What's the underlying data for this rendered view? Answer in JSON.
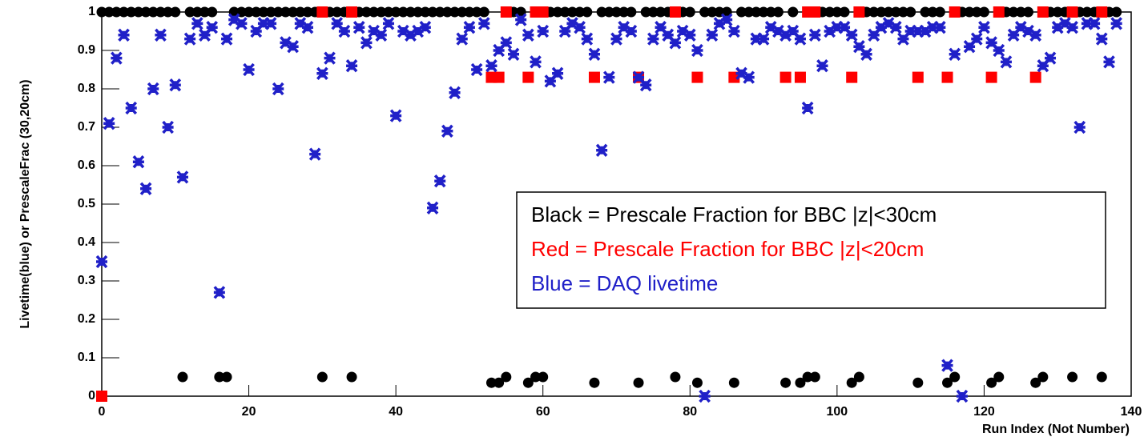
{
  "chart_data": {
    "type": "scatter",
    "xlabel": "Run Index (Not Number)",
    "ylabel": "Livetime(blue) or PrescaleFrac (30,20cm)",
    "xlim": [
      0,
      140
    ],
    "xticks": [
      0,
      20,
      40,
      60,
      80,
      100,
      120,
      140
    ],
    "ylim": [
      0,
      1
    ],
    "yticks": [
      0,
      0.1,
      0.2,
      0.3,
      0.4,
      0.5,
      0.6,
      0.7,
      0.8,
      0.9,
      1
    ],
    "series": [
      {
        "name": "Black = Prescale Fraction for BBC |z|<30cm",
        "color": "#000000",
        "marker": "circle",
        "x": [
          0,
          1,
          2,
          3,
          4,
          5,
          6,
          7,
          8,
          9,
          10,
          11,
          12,
          13,
          14,
          15,
          16,
          17,
          18,
          19,
          20,
          21,
          22,
          23,
          24,
          25,
          26,
          27,
          28,
          29,
          30,
          31,
          32,
          33,
          34,
          35,
          36,
          37,
          38,
          39,
          40,
          41,
          42,
          43,
          44,
          45,
          46,
          47,
          48,
          49,
          50,
          51,
          52,
          53,
          54,
          55,
          56,
          57,
          58,
          59,
          60,
          61,
          62,
          63,
          64,
          65,
          66,
          67,
          68,
          69,
          70,
          71,
          72,
          73,
          74,
          75,
          76,
          77,
          78,
          79,
          80,
          81,
          82,
          83,
          84,
          85,
          86,
          87,
          88,
          89,
          90,
          91,
          92,
          93,
          94,
          95,
          96,
          97,
          98,
          99,
          100,
          101,
          102,
          103,
          104,
          105,
          106,
          107,
          108,
          109,
          110,
          111,
          112,
          113,
          114,
          115,
          116,
          117,
          118,
          119,
          120,
          121,
          122,
          123,
          124,
          125,
          126,
          127,
          128,
          129,
          130,
          131,
          132,
          133,
          134,
          135,
          136,
          137,
          138
        ],
        "values": [
          1,
          1,
          1,
          1,
          1,
          1,
          1,
          1,
          1,
          1,
          1,
          0.05,
          1,
          1,
          1,
          1,
          0.05,
          0.05,
          1,
          1,
          1,
          1,
          1,
          1,
          1,
          1,
          1,
          1,
          1,
          1,
          0.05,
          1,
          1,
          1,
          0.05,
          1,
          1,
          1,
          1,
          1,
          1,
          1,
          1,
          1,
          1,
          1,
          1,
          1,
          1,
          1,
          1,
          1,
          1,
          0.035,
          0.035,
          0.05,
          1,
          1,
          0.035,
          0.05,
          0.05,
          1,
          1,
          1,
          1,
          1,
          1,
          0.035,
          1,
          1,
          1,
          1,
          1,
          0.035,
          1,
          1,
          1,
          1,
          0.05,
          1,
          1,
          0.035,
          1,
          1,
          1,
          1,
          0.035,
          1,
          1,
          1,
          1,
          1,
          1,
          0.035,
          1,
          0.035,
          0.05,
          0.05,
          1,
          1,
          1,
          1,
          0.035,
          0.05,
          1,
          1,
          1,
          1,
          1,
          1,
          1,
          0.035,
          1,
          1,
          1,
          0.035,
          0.05,
          1,
          1,
          1,
          1,
          0.035,
          0.05,
          1,
          1,
          1,
          1,
          0.035,
          0.05,
          1,
          1,
          1,
          0.05,
          1,
          1,
          1,
          0.05,
          1,
          1
        ]
      },
      {
        "name": "Red = Prescale Fraction for BBC |z|<20cm",
        "color": "#ff0000",
        "marker": "square",
        "x": [
          0,
          30,
          34,
          53,
          54,
          55,
          58,
          59,
          60,
          67,
          73,
          78,
          81,
          86,
          93,
          95,
          96,
          97,
          102,
          103,
          111,
          115,
          116,
          121,
          122,
          127,
          128,
          132,
          136
        ],
        "values": [
          0,
          1,
          1,
          0.83,
          0.83,
          1,
          0.83,
          1,
          1,
          0.83,
          0.83,
          1,
          0.83,
          0.83,
          0.83,
          0.83,
          1,
          1,
          0.83,
          1,
          0.83,
          0.83,
          1,
          0.83,
          1,
          0.83,
          1,
          1,
          1
        ]
      },
      {
        "name": "Blue = DAQ livetime",
        "color": "#2020c8",
        "marker": "star",
        "x": [
          0,
          1,
          2,
          3,
          4,
          5,
          6,
          7,
          8,
          9,
          10,
          11,
          12,
          13,
          14,
          15,
          16,
          17,
          18,
          19,
          20,
          21,
          22,
          23,
          24,
          25,
          26,
          27,
          28,
          29,
          30,
          31,
          32,
          33,
          34,
          35,
          36,
          37,
          38,
          39,
          40,
          41,
          42,
          43,
          44,
          45,
          46,
          47,
          48,
          49,
          50,
          51,
          52,
          53,
          54,
          55,
          56,
          57,
          58,
          59,
          60,
          61,
          62,
          63,
          64,
          65,
          66,
          67,
          68,
          69,
          70,
          71,
          72,
          73,
          74,
          75,
          76,
          77,
          78,
          79,
          80,
          81,
          82,
          83,
          84,
          85,
          86,
          87,
          88,
          89,
          90,
          91,
          92,
          93,
          94,
          95,
          96,
          97,
          98,
          99,
          100,
          101,
          102,
          103,
          104,
          105,
          106,
          107,
          108,
          109,
          110,
          111,
          112,
          113,
          114,
          115,
          116,
          117,
          118,
          119,
          120,
          121,
          122,
          123,
          124,
          125,
          126,
          127,
          128,
          129,
          130,
          131,
          132,
          133,
          134,
          135,
          136,
          137,
          138
        ],
        "values": [
          0.35,
          0.71,
          0.88,
          0.94,
          0.75,
          0.61,
          0.54,
          0.8,
          0.94,
          0.7,
          0.81,
          0.57,
          0.93,
          0.97,
          0.94,
          0.96,
          0.27,
          0.93,
          0.98,
          0.97,
          0.85,
          0.95,
          0.97,
          0.97,
          0.8,
          0.92,
          0.91,
          0.97,
          0.96,
          0.63,
          0.84,
          0.88,
          0.97,
          0.95,
          0.86,
          0.96,
          0.92,
          0.95,
          0.94,
          0.97,
          0.73,
          0.95,
          0.94,
          0.95,
          0.96,
          0.49,
          0.56,
          0.69,
          0.79,
          0.93,
          0.96,
          0.85,
          0.97,
          0.86,
          0.9,
          0.92,
          0.89,
          0.98,
          0.94,
          0.87,
          0.95,
          0.82,
          0.84,
          0.95,
          0.97,
          0.96,
          0.93,
          0.89,
          0.64,
          0.83,
          0.93,
          0.96,
          0.95,
          0.83,
          0.81,
          0.93,
          0.96,
          0.94,
          0.92,
          0.95,
          0.94,
          0.9,
          0,
          0.94,
          0.97,
          0.98,
          0.95,
          0.84,
          0.83,
          0.93,
          0.93,
          0.96,
          0.95,
          0.94,
          0.95,
          0.93,
          0.75,
          0.94,
          0.86,
          0.95,
          0.96,
          0.96,
          0.94,
          0.91,
          0.89,
          0.94,
          0.96,
          0.97,
          0.96,
          0.93,
          0.95,
          0.95,
          0.95,
          0.96,
          0.96,
          0.08,
          0.89,
          0,
          0.91,
          0.93,
          0.96,
          0.92,
          0.9,
          0.87,
          0.94,
          0.96,
          0.95,
          0.94,
          0.86,
          0.88,
          0.96,
          0.97,
          0.96,
          0.7,
          0.97,
          0.97,
          0.93,
          0.87,
          0.97
        ]
      }
    ]
  }
}
